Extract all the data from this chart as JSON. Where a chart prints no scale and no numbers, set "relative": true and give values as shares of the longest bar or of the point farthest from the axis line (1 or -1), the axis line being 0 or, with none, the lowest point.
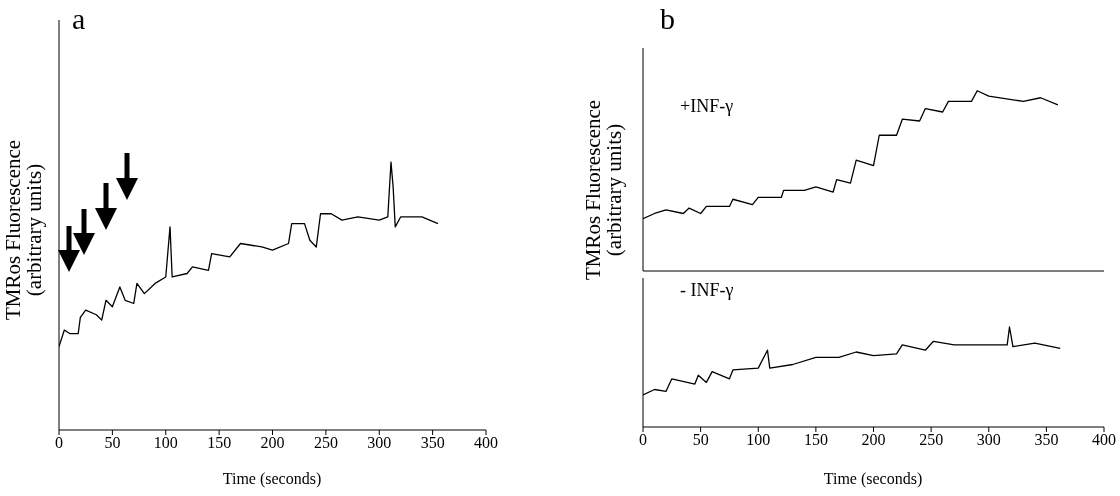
{
  "chart_data": [
    {
      "type": "line",
      "title": "a",
      "xlabel": "Time (seconds)",
      "ylabel": "TMRos Fluorescence\n(arbitrary units)",
      "relative": true,
      "xlim": [
        0,
        400
      ],
      "xticks": [
        0,
        50,
        100,
        150,
        200,
        250,
        300,
        350,
        400
      ],
      "x": [
        0,
        5,
        10,
        18,
        20,
        25,
        35,
        40,
        44,
        50,
        57,
        62,
        70,
        73,
        80,
        90,
        100,
        104,
        106,
        120,
        125,
        140,
        143,
        160,
        170,
        190,
        200,
        215,
        218,
        230,
        235,
        241,
        245,
        255,
        265,
        280,
        300,
        308,
        311,
        313,
        315,
        320,
        340,
        355
      ],
      "series": [
        {
          "color": "#000000",
          "values": [
            0.311,
            0.373,
            0.36,
            0.36,
            0.42,
            0.447,
            0.43,
            0.41,
            0.484,
            0.46,
            0.534,
            0.484,
            0.472,
            0.547,
            0.509,
            0.547,
            0.571,
            0.758,
            0.571,
            0.584,
            0.609,
            0.596,
            0.658,
            0.646,
            0.696,
            0.683,
            0.671,
            0.696,
            0.77,
            0.77,
            0.708,
            0.683,
            0.807,
            0.807,
            0.783,
            0.795,
            0.783,
            0.795,
            1,
            0.907,
            0.758,
            0.795,
            0.795,
            0.77
          ]
        }
      ]
    },
    {
      "type": "line",
      "title": "b",
      "ylabel": "TMRos Fluorescence\n(arbitrary units)",
      "relative": true,
      "tick_labels": false,
      "xlim": [
        0,
        400
      ],
      "x": [
        0,
        10,
        20,
        35,
        40,
        50,
        55,
        75,
        78,
        95,
        100,
        120,
        122,
        140,
        150,
        165,
        168,
        180,
        185,
        200,
        205,
        220,
        225,
        240,
        245,
        260,
        265,
        285,
        290,
        300,
        330,
        345,
        360
      ],
      "series": [
        {
          "name": "+INF-γ",
          "color": "#000000",
          "values": [
            0.29,
            0.319,
            0.339,
            0.319,
            0.349,
            0.319,
            0.358,
            0.358,
            0.398,
            0.368,
            0.408,
            0.408,
            0.447,
            0.447,
            0.467,
            0.438,
            0.507,
            0.487,
            0.615,
            0.585,
            0.753,
            0.753,
            0.842,
            0.832,
            0.901,
            0.882,
            0.941,
            0.941,
            1,
            0.97,
            0.941,
            0.961,
            0.921
          ]
        }
      ]
    },
    {
      "type": "line",
      "xlabel": "Time (seconds)",
      "relative": true,
      "xlim": [
        0,
        400
      ],
      "xticks": [
        0,
        50,
        100,
        150,
        200,
        250,
        300,
        350,
        400
      ],
      "x": [
        0,
        10,
        20,
        25,
        45,
        48,
        55,
        60,
        75,
        78,
        100,
        108,
        110,
        130,
        150,
        170,
        185,
        200,
        220,
        225,
        245,
        252,
        270,
        300,
        316,
        318,
        321,
        340,
        362
      ],
      "series": [
        {
          "name": "- INF-γ",
          "color": "#000000",
          "values": [
            0.321,
            0.375,
            0.357,
            0.482,
            0.429,
            0.518,
            0.446,
            0.554,
            0.482,
            0.571,
            0.589,
            0.768,
            0.589,
            0.625,
            0.696,
            0.696,
            0.75,
            0.714,
            0.732,
            0.821,
            0.768,
            0.857,
            0.821,
            0.821,
            0.821,
            1,
            0.804,
            0.839,
            0.786
          ]
        }
      ]
    }
  ]
}
